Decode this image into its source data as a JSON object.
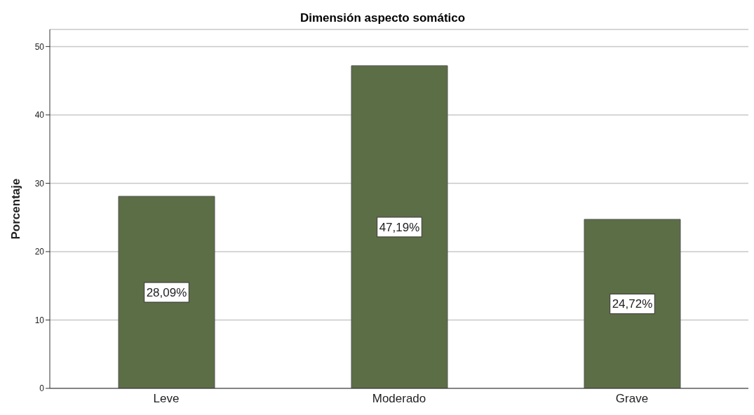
{
  "chart_data": {
    "type": "bar",
    "title": "Dimensión aspecto somático",
    "ylabel": "Porcentaje",
    "categories": [
      "Leve",
      "Moderado",
      "Grave"
    ],
    "values": [
      28.09,
      47.19,
      24.72
    ],
    "value_labels": [
      "28,09%",
      "47,19%",
      "24,72%"
    ],
    "color": "#5c6e46",
    "ylim": [
      0,
      52.5
    ],
    "yticks": [
      0,
      10,
      20,
      30,
      40,
      50
    ],
    "grid": "y"
  }
}
